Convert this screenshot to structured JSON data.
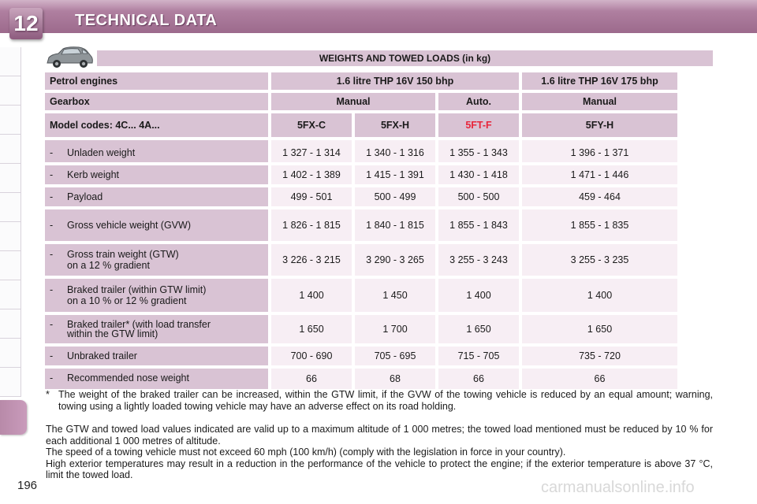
{
  "header": {
    "chapter": "12",
    "title": "TECHNICAL DATA"
  },
  "icons": {
    "car": "car-icon"
  },
  "table": {
    "title": "WEIGHTS AND TOWED LOADS (in kg)",
    "engines_label": "Petrol engines",
    "engine_150": "1.6 litre THP 16V 150 bhp",
    "engine_175": "1.6 litre THP 16V 175 bhp",
    "gearbox_label": "Gearbox",
    "gearbox_manual_1": "Manual",
    "gearbox_auto": "Auto.",
    "gearbox_manual_2": "Manual",
    "model_label": "Model codes:  4C... 4A...",
    "models": [
      "5FX-C",
      "5FX-H",
      "5FT-F",
      "5FY-H"
    ],
    "model_highlight_color": "#e8253b",
    "rows": [
      {
        "dash": "-",
        "label": "Unladen weight",
        "label2": "",
        "values": [
          "1 327 - 1 314",
          "1 340 - 1 316",
          "1 355 - 1 343",
          "1 396 - 1 371"
        ]
      },
      {
        "dash": "-",
        "label": "Kerb weight",
        "label2": "",
        "values": [
          "1 402 - 1 389",
          "1 415 - 1 391",
          "1 430 - 1 418",
          "1 471 - 1 446"
        ]
      },
      {
        "dash": "-",
        "label": "Payload",
        "label2": "",
        "values": [
          "499 - 501",
          "500 - 499",
          "500 - 500",
          "459 - 464"
        ]
      },
      {
        "dash": "-",
        "label": "Gross vehicle weight (GVW)",
        "label2": "",
        "values": [
          "1 826 - 1 815",
          "1 840 - 1 815",
          "1 855 - 1 843",
          "1 855 - 1 835"
        ]
      },
      {
        "dash": "-",
        "label": "Gross train weight (GTW)",
        "label2": "on a 12 % gradient",
        "values": [
          "3 226 - 3 215",
          "3 290 - 3 265",
          "3 255 - 3 243",
          "3 255 - 3 235"
        ]
      },
      {
        "dash": "-",
        "label": "Braked trailer (within GTW limit)",
        "label2": "on a 10 % or 12 % gradient",
        "values": [
          "1 400",
          "1 450",
          "1 400",
          "1 400"
        ]
      },
      {
        "dash": "-",
        "label": "Braked trailer* (with load transfer",
        "label2": "within the GTW limit)",
        "values": [
          "1 650",
          "1 700",
          "1 650",
          "1 650"
        ]
      },
      {
        "dash": "-",
        "label": "Unbraked trailer",
        "label2": "",
        "values": [
          "700 - 690",
          "705 - 695",
          "715 - 705",
          "735 - 720"
        ]
      },
      {
        "dash": "-",
        "label": "Recommended nose weight",
        "label2": "",
        "values": [
          "66",
          "68",
          "66",
          "66"
        ]
      }
    ]
  },
  "footnote": {
    "marker": "*",
    "text": "The weight of the braked trailer can be increased, within the GTW limit, if the GVW of the towing vehicle is reduced by an equal amount; warning, towing using a lightly loaded towing vehicle may have an adverse effect on its road holding."
  },
  "paragraphs": [
    "The GTW and towed load values indicated are valid up to a maximum altitude of 1 000 metres; the towed load mentioned must be reduced by 10 % for each additional 1 000 metres of altitude.",
    "The speed of a towing vehicle must not exceed 60 mph (100 km/h) (comply with the legislation in force in your country).",
    "High exterior temperatures may result in a reduction in the performance of the vehicle to protect the engine; if the exterior temperature is above 37 °C, limit the towed load."
  ],
  "page_number": "196",
  "watermark": "carmanualsonline.info"
}
